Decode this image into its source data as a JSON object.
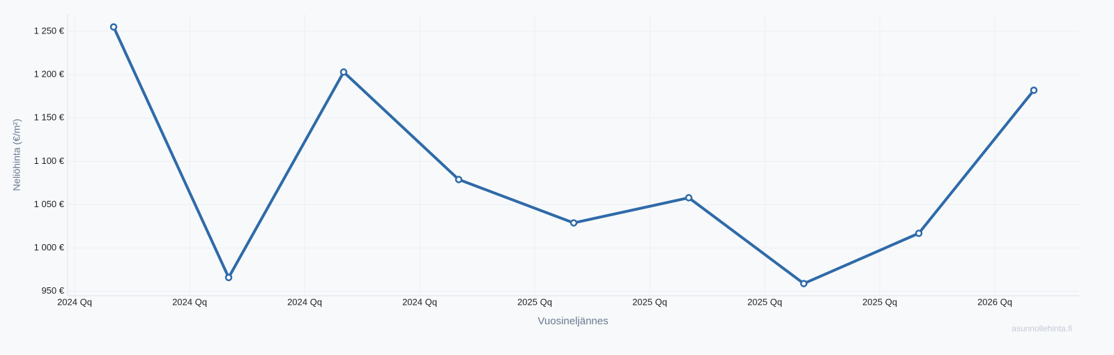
{
  "chart_data": {
    "type": "line",
    "y_axis_label": "Neliöhinta (€/m²)",
    "x_axis_label": "Vuosineljännes",
    "watermark": "asunnollehinta.fi",
    "x_tick_labels": [
      "2024 Qq",
      "2024 Qq",
      "2024 Qq",
      "2024 Qq",
      "2025 Qq",
      "2025 Qq",
      "2025 Qq",
      "2025 Qq",
      "2026 Qq"
    ],
    "values": [
      1255,
      966,
      1203,
      1079,
      1029,
      1058,
      959,
      1017,
      1182
    ],
    "color": "#2f6aa8",
    "ylim": [
      945,
      1270
    ],
    "yticks": [
      {
        "value": 950,
        "label": "950 €"
      },
      {
        "value": 1000,
        "label": "1 000 €"
      },
      {
        "value": 1050,
        "label": "1 050 €"
      },
      {
        "value": 1100,
        "label": "1 100 €"
      },
      {
        "value": 1150,
        "label": "1 150 €"
      },
      {
        "value": 1200,
        "label": "1 200 €"
      },
      {
        "value": 1250,
        "label": "1 250 €"
      }
    ],
    "grid": true
  }
}
